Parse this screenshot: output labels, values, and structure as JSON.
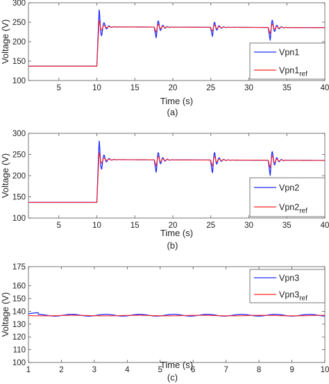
{
  "colors": {
    "measured": "#1f2cff",
    "reference": "#ff2020",
    "axis": "#555555",
    "background": "#ffffff"
  },
  "chart_data": [
    {
      "type": "line",
      "caption": "(a)",
      "xlabel": "Time (s)",
      "ylabel": "Voltage (V)",
      "xlim": [
        1,
        40
      ],
      "ylim": [
        100,
        300
      ],
      "xticks": [
        5,
        10,
        15,
        20,
        25,
        30,
        35,
        40
      ],
      "yticks": [
        100,
        150,
        200,
        250,
        300
      ],
      "grid": false,
      "legend_position": "lower-right",
      "steady_before": 137,
      "step_time": 10,
      "steady_after": 238,
      "final_value": 236,
      "series": [
        {
          "name": "Vpn1",
          "label_sub": "",
          "role": "measured",
          "events": [
            {
              "t": 10.3,
              "peak": 283
            },
            {
              "t": 17.8,
              "peak": 210
            },
            {
              "t": 25.2,
              "peak": 215
            },
            {
              "t": 32.8,
              "peak": 205
            }
          ]
        },
        {
          "name": "Vpn1",
          "label_sub": "ref",
          "role": "reference",
          "events": [
            {
              "t": 10.3,
              "peak": 255
            },
            {
              "t": 17.8,
              "peak": 225
            },
            {
              "t": 25.2,
              "peak": 228
            },
            {
              "t": 32.8,
              "peak": 222
            }
          ]
        }
      ]
    },
    {
      "type": "line",
      "caption": "(b)",
      "xlabel": "Time (s)",
      "ylabel": "Voltage (V)",
      "xlim": [
        1,
        40
      ],
      "ylim": [
        100,
        300
      ],
      "xticks": [
        5,
        10,
        15,
        20,
        25,
        30,
        35,
        40
      ],
      "yticks": [
        100,
        150,
        200,
        250,
        300
      ],
      "grid": false,
      "legend_position": "lower-right",
      "steady_before": 137,
      "step_time": 10,
      "steady_after": 238,
      "final_value": 236,
      "series": [
        {
          "name": "Vpn2",
          "label_sub": "",
          "role": "measured",
          "events": [
            {
              "t": 10.3,
              "peak": 283
            },
            {
              "t": 17.8,
              "peak": 208
            },
            {
              "t": 25.2,
              "peak": 207
            },
            {
              "t": 32.8,
              "peak": 202
            }
          ]
        },
        {
          "name": "Vpn2",
          "label_sub": "ref",
          "role": "reference",
          "events": [
            {
              "t": 10.3,
              "peak": 255
            },
            {
              "t": 17.8,
              "peak": 224
            },
            {
              "t": 25.2,
              "peak": 224
            },
            {
              "t": 32.8,
              "peak": 220
            }
          ]
        }
      ]
    },
    {
      "type": "line",
      "caption": "(c)",
      "xlabel": "Time (s)",
      "ylabel": "Voltage (V)",
      "xlim": [
        1,
        10
      ],
      "ylim": [
        100,
        175
      ],
      "xticks": [
        1,
        2,
        3,
        4,
        5,
        6,
        7,
        8,
        9,
        10
      ],
      "yticks": [
        100,
        110,
        120,
        130,
        140,
        150,
        160,
        175
      ],
      "ytick_labels": [
        "100",
        "110",
        "120",
        "130",
        "140",
        "150",
        "160",
        "175"
      ],
      "grid": false,
      "legend_position": "top-right",
      "steady_value": 137,
      "series": [
        {
          "name": "Vpn3",
          "label_sub": "",
          "role": "measured"
        },
        {
          "name": "Vpn3",
          "label_sub": "ref",
          "role": "reference"
        }
      ]
    }
  ]
}
